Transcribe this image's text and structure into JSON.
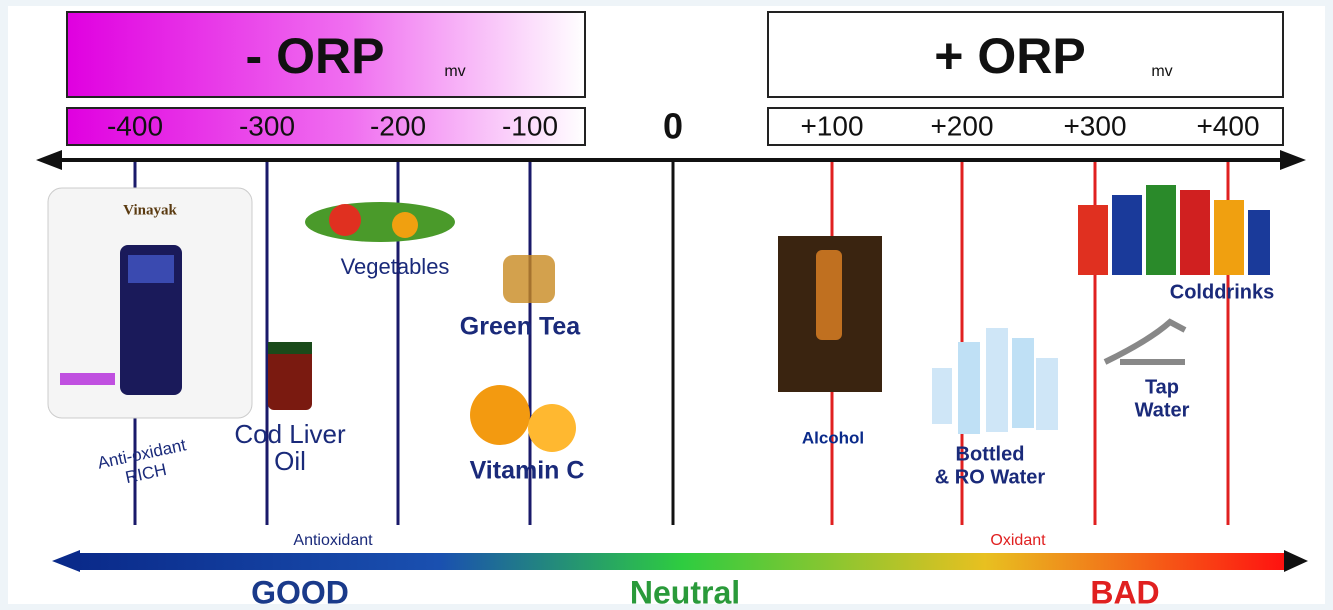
{
  "negative": {
    "title": "- ORP",
    "unit": "mv",
    "ticks": [
      "-400",
      "-300",
      "-200",
      "-100"
    ]
  },
  "zero": "0",
  "positive": {
    "title": "+ ORP",
    "unit": "mv",
    "ticks": [
      "+100",
      "+200",
      "+300",
      "+400"
    ]
  },
  "items": [
    {
      "lines": [
        "Vinayak"
      ]
    },
    {
      "lines": [
        "Anti-oxidant",
        "RICH"
      ]
    },
    {
      "lines": [
        "Cod Liver",
        "Oil"
      ]
    },
    {
      "lines": [
        "Vegetables"
      ]
    },
    {
      "lines": [
        "Green Tea"
      ]
    },
    {
      "lines": [
        "Vitamin C"
      ]
    },
    {
      "lines": [
        "Alcohol"
      ]
    },
    {
      "lines": [
        "Bottled",
        "& RO Water"
      ]
    },
    {
      "lines": [
        "Tap",
        "Water"
      ]
    },
    {
      "lines": [
        "Colddrinks"
      ]
    }
  ],
  "bar": {
    "left": "Antioxidant",
    "right": "Oxidant"
  },
  "verdict": {
    "good": "GOOD",
    "neutral": "Neutral",
    "bad": "BAD"
  }
}
